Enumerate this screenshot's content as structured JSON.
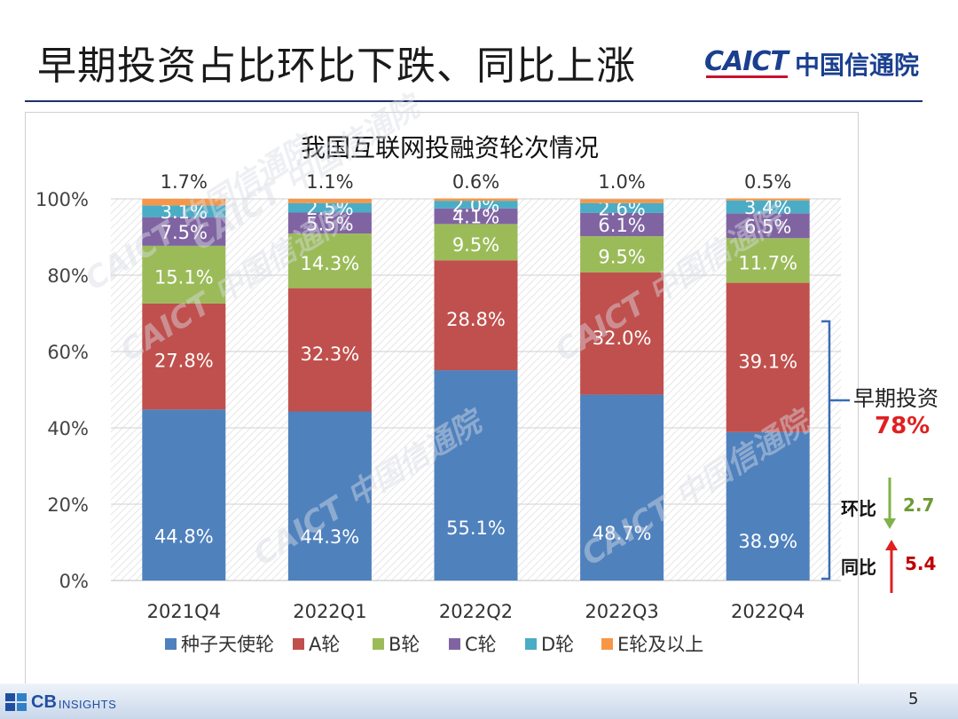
{
  "slide": {
    "title": "早期投资占比环比下跌、同比上涨",
    "logo_caict": "CAICT",
    "logo_cn": "中国信通院",
    "page_number": "5",
    "footer_logo_cb": "CB",
    "footer_logo_insights": "INSIGHTS"
  },
  "annotations": {
    "early_label": "早期投资",
    "early_value": "78%",
    "mom_label": "环比",
    "mom_value": "2.7",
    "yoy_label": "同比",
    "yoy_value": "5.4"
  },
  "watermark_text": "CAICT 中国信通院",
  "colors": {
    "seed": "#4f81bd",
    "a": "#c0504d",
    "b": "#9bbb59",
    "c": "#8064a2",
    "d": "#4bacc6",
    "e": "#f79646",
    "mom_arrow": "#7fb24a",
    "yoy_arrow": "#e02020",
    "bracket": "#3b6bb5"
  },
  "chart_data": {
    "type": "bar",
    "stacked": true,
    "title": "我国互联网投融资轮次情况",
    "categories": [
      "2021Q4",
      "2022Q1",
      "2022Q2",
      "2022Q3",
      "2022Q4"
    ],
    "series": [
      {
        "name": "种子天使轮",
        "values": [
          44.8,
          44.3,
          55.1,
          48.7,
          38.9
        ],
        "labels": [
          "44.8%",
          "44.3%",
          "55.1%",
          "48.7%",
          "38.9%"
        ]
      },
      {
        "name": "A轮",
        "values": [
          27.8,
          32.3,
          28.8,
          32.0,
          39.1
        ],
        "labels": [
          "27.8%",
          "32.3%",
          "28.8%",
          "32.0%",
          "39.1%"
        ]
      },
      {
        "name": "B轮",
        "values": [
          15.1,
          14.3,
          9.5,
          9.5,
          11.7
        ],
        "labels": [
          "15.1%",
          "14.3%",
          "9.5%",
          "9.5%",
          "11.7%"
        ]
      },
      {
        "name": "C轮",
        "values": [
          7.5,
          5.5,
          4.1,
          6.1,
          6.5
        ],
        "labels": [
          "7.5%",
          "5.5%",
          "4.1%",
          "6.1%",
          "6.5%"
        ]
      },
      {
        "name": "D轮",
        "values": [
          3.1,
          2.5,
          2.0,
          2.6,
          3.4
        ],
        "labels": [
          "3.1%",
          "2.5%",
          "2.0%",
          "2.6%",
          "3.4%"
        ]
      },
      {
        "name": "E轮及以上",
        "values": [
          1.7,
          1.1,
          0.6,
          1.0,
          0.5
        ],
        "labels": [
          "1.7%",
          "1.1%",
          "0.6%",
          "1.0%",
          "0.5%"
        ]
      }
    ],
    "yticks": [
      "0%",
      "20%",
      "40%",
      "60%",
      "80%",
      "100%"
    ],
    "ylim": [
      0,
      100
    ],
    "legend_position": "bottom",
    "grid": true
  }
}
